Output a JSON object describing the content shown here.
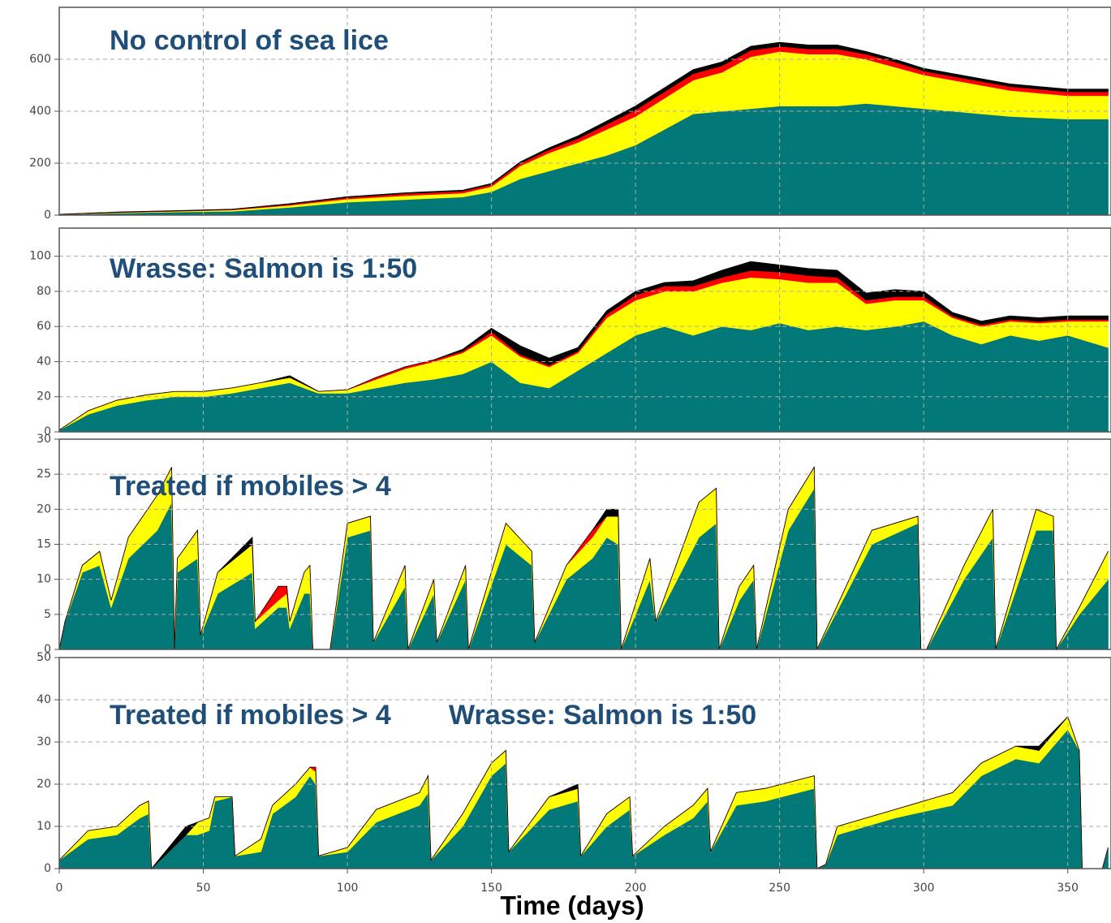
{
  "chart_data": [
    {
      "type": "area",
      "stacked": true,
      "annotations": [
        "No control of sea lice"
      ],
      "xlim": [
        0,
        365
      ],
      "ylim": [
        0,
        800
      ],
      "yticks": [
        0,
        200,
        400,
        600
      ],
      "grid": true,
      "x": [
        0,
        20,
        40,
        60,
        80,
        100,
        120,
        140,
        150,
        160,
        170,
        180,
        190,
        200,
        210,
        220,
        230,
        240,
        250,
        260,
        270,
        280,
        290,
        300,
        310,
        320,
        330,
        340,
        350,
        364
      ],
      "series": [
        {
          "color": "#037878",
          "values": [
            2,
            8,
            12,
            15,
            30,
            50,
            60,
            70,
            90,
            140,
            170,
            200,
            230,
            270,
            330,
            390,
            400,
            410,
            420,
            420,
            420,
            430,
            420,
            410,
            400,
            390,
            380,
            375,
            370,
            370
          ]
        },
        {
          "color": "#ffff00",
          "values": [
            1,
            2,
            3,
            5,
            8,
            12,
            15,
            15,
            20,
            50,
            70,
            80,
            100,
            110,
            120,
            130,
            150,
            200,
            210,
            200,
            200,
            170,
            150,
            130,
            120,
            110,
            100,
            95,
            90,
            90
          ]
        },
        {
          "color": "#ff0000",
          "values": [
            0,
            1,
            1,
            2,
            4,
            6,
            8,
            8,
            8,
            10,
            12,
            15,
            20,
            25,
            25,
            25,
            25,
            25,
            20,
            20,
            20,
            20,
            20,
            15,
            15,
            15,
            15,
            15,
            15,
            15
          ]
        },
        {
          "color": "#000000",
          "values": [
            0,
            1,
            1,
            1,
            2,
            3,
            3,
            3,
            4,
            5,
            7,
            10,
            12,
            15,
            15,
            15,
            15,
            15,
            15,
            15,
            15,
            10,
            10,
            10,
            10,
            10,
            10,
            10,
            10,
            10
          ]
        }
      ]
    },
    {
      "type": "area",
      "stacked": true,
      "annotations": [
        "Wrasse: Salmon is 1:50"
      ],
      "xlim": [
        0,
        365
      ],
      "ylim": [
        0,
        116
      ],
      "yticks": [
        0,
        20,
        40,
        60,
        80,
        100
      ],
      "grid": true,
      "x": [
        0,
        10,
        20,
        30,
        40,
        50,
        60,
        70,
        80,
        90,
        100,
        110,
        120,
        130,
        140,
        150,
        160,
        170,
        180,
        190,
        200,
        210,
        220,
        230,
        240,
        250,
        260,
        270,
        280,
        290,
        300,
        310,
        320,
        330,
        340,
        350,
        364
      ],
      "series": [
        {
          "color": "#037878",
          "values": [
            1,
            10,
            15,
            18,
            20,
            20,
            22,
            25,
            28,
            22,
            22,
            25,
            28,
            30,
            33,
            40,
            28,
            25,
            35,
            45,
            55,
            60,
            55,
            60,
            58,
            62,
            58,
            60,
            58,
            60,
            63,
            55,
            50,
            55,
            52,
            55,
            48
          ]
        },
        {
          "color": "#ffff00",
          "values": [
            0,
            2,
            3,
            3,
            3,
            3,
            3,
            3,
            3,
            1,
            2,
            5,
            8,
            10,
            12,
            15,
            15,
            12,
            10,
            20,
            20,
            20,
            25,
            25,
            30,
            25,
            27,
            25,
            15,
            15,
            12,
            10,
            10,
            8,
            10,
            8,
            15
          ]
        },
        {
          "color": "#ff0000",
          "values": [
            0,
            0,
            0,
            0,
            0,
            0,
            0,
            0,
            0,
            0,
            0,
            1,
            1,
            1,
            1,
            2,
            1,
            1,
            1,
            2,
            3,
            3,
            3,
            3,
            4,
            4,
            4,
            3,
            2,
            2,
            2,
            1,
            1,
            1,
            1,
            1,
            1
          ]
        },
        {
          "color": "#000000",
          "values": [
            0,
            0,
            0,
            0,
            0,
            0,
            0,
            0,
            1,
            0,
            0,
            0,
            0,
            0,
            1,
            2,
            5,
            4,
            2,
            2,
            2,
            2,
            3,
            4,
            5,
            4,
            4,
            4,
            4,
            4,
            3,
            2,
            2,
            2,
            2,
            2,
            2
          ]
        }
      ]
    },
    {
      "type": "area",
      "stacked": true,
      "annotations": [
        "Treated if mobiles > 4"
      ],
      "xlim": [
        0,
        365
      ],
      "ylim": [
        0,
        30
      ],
      "yticks": [
        0,
        5,
        10,
        15,
        20,
        25,
        30
      ],
      "grid": true,
      "x": [
        0,
        2,
        8,
        14,
        18,
        24,
        34,
        39,
        40,
        41,
        48,
        49,
        55,
        67,
        68,
        76,
        79,
        80,
        85,
        87,
        88,
        94,
        100,
        108,
        109,
        120,
        121,
        130,
        131,
        141,
        142,
        155,
        164,
        165,
        176,
        185,
        190,
        194,
        195,
        205,
        207,
        222,
        228,
        229,
        236,
        241,
        242,
        253,
        262,
        263,
        282,
        298,
        299,
        301,
        314,
        324,
        325,
        339,
        345,
        346,
        354,
        364
      ],
      "series": [
        {
          "color": "#037878",
          "values": [
            0,
            4,
            11,
            12,
            6,
            13,
            17,
            21,
            0,
            11,
            13,
            2,
            8,
            11,
            3,
            6,
            6,
            3,
            8,
            8,
            0,
            0,
            16,
            17,
            1,
            9,
            0,
            8,
            1,
            10,
            0,
            15,
            12,
            1,
            10,
            13,
            16,
            15,
            0,
            10,
            4,
            16,
            18,
            0,
            7,
            10,
            0,
            17,
            23,
            0,
            15,
            18,
            0,
            0,
            10,
            16,
            0,
            17,
            17,
            0,
            5,
            10
          ]
        },
        {
          "color": "#ffff00",
          "values": [
            0,
            0,
            1,
            2,
            1,
            3,
            5,
            5,
            0,
            2,
            4,
            0,
            3,
            4,
            1,
            1,
            2,
            1,
            3,
            4,
            0,
            0,
            2,
            2,
            0,
            3,
            0,
            2,
            0,
            2,
            0,
            3,
            2,
            0,
            2,
            3,
            3,
            4,
            0,
            3,
            0,
            5,
            5,
            0,
            2,
            2,
            0,
            3,
            3,
            0,
            2,
            1,
            0,
            0,
            2,
            4,
            0,
            3,
            2,
            0,
            1,
            4
          ]
        },
        {
          "color": "#ff0000",
          "values": [
            0,
            0,
            0,
            0,
            0,
            0,
            0,
            0,
            0,
            0,
            0,
            0,
            0,
            0,
            0,
            2,
            1,
            0,
            0,
            0,
            0,
            0,
            0,
            0,
            0,
            0,
            0,
            0,
            0,
            0,
            0,
            0,
            0,
            0,
            0,
            1,
            0,
            0,
            0,
            0,
            0,
            0,
            0,
            0,
            0,
            0,
            0,
            0,
            0,
            0,
            0,
            0,
            0,
            0,
            0,
            0,
            0,
            0,
            0,
            0,
            0,
            0
          ]
        },
        {
          "color": "#000000",
          "values": [
            0,
            0,
            0,
            0,
            0,
            0,
            0,
            0,
            0,
            0,
            0,
            0,
            0,
            1,
            0,
            0,
            0,
            0,
            0,
            0,
            0,
            0,
            0,
            0,
            0,
            0,
            0,
            0,
            0,
            0,
            0,
            0,
            0,
            0,
            0,
            0,
            1,
            1,
            0,
            0,
            0,
            0,
            0,
            0,
            0,
            0,
            0,
            0,
            0,
            0,
            0,
            0,
            0,
            0,
            0,
            0,
            0,
            0,
            0,
            0,
            0,
            0
          ]
        }
      ]
    },
    {
      "type": "area",
      "stacked": true,
      "annotations": [
        "Treated if mobiles > 4",
        "Wrasse: Salmon is 1:50"
      ],
      "xlabel": "Time (days)",
      "xlim": [
        0,
        365
      ],
      "ylim": [
        0,
        50
      ],
      "yticks": [
        0,
        10,
        20,
        30,
        40,
        50
      ],
      "xticks": [
        0,
        50,
        100,
        150,
        200,
        250,
        300,
        350
      ],
      "grid": true,
      "x": [
        0,
        10,
        20,
        28,
        31,
        32,
        38,
        44,
        48,
        52,
        54,
        60,
        61,
        70,
        74,
        82,
        87,
        89,
        90,
        100,
        110,
        125,
        128,
        129,
        140,
        150,
        155,
        156,
        170,
        180,
        181,
        190,
        198,
        199,
        210,
        220,
        225,
        226,
        235,
        245,
        262,
        263,
        266,
        270,
        290,
        310,
        320,
        332,
        340,
        350,
        354,
        355,
        362,
        364
      ],
      "series": [
        {
          "color": "#037878",
          "values": [
            2,
            7,
            8,
            12,
            13,
            0,
            4,
            8,
            8,
            9,
            16,
            17,
            3,
            4,
            13,
            17,
            22,
            20,
            3,
            4,
            11,
            15,
            18,
            2,
            10,
            22,
            25,
            4,
            14,
            16,
            3,
            10,
            14,
            3,
            8,
            12,
            16,
            4,
            15,
            16,
            19,
            0,
            1,
            8,
            12,
            15,
            22,
            26,
            25,
            33,
            28,
            0,
            0,
            5
          ]
        },
        {
          "color": "#ffff00",
          "values": [
            0,
            2,
            2,
            3,
            3,
            0,
            0,
            0,
            3,
            3,
            1,
            0,
            0,
            3,
            2,
            3,
            2,
            3,
            0,
            1,
            3,
            3,
            4,
            0,
            3,
            3,
            3,
            0,
            3,
            3,
            0,
            3,
            3,
            0,
            2,
            3,
            3,
            0,
            3,
            3,
            3,
            0,
            0,
            2,
            2,
            3,
            3,
            3,
            3,
            3,
            0,
            0,
            0,
            0
          ]
        },
        {
          "color": "#ff0000",
          "values": [
            0,
            0,
            0,
            0,
            0,
            0,
            0,
            0,
            0,
            0,
            0,
            0,
            0,
            0,
            0,
            0,
            0,
            1,
            0,
            0,
            0,
            0,
            0,
            0,
            0,
            0,
            0,
            0,
            0,
            0,
            0,
            0,
            0,
            0,
            0,
            0,
            0,
            0,
            0,
            0,
            0,
            0,
            0,
            0,
            0,
            0,
            0,
            0,
            0,
            0,
            0,
            0,
            0,
            0
          ]
        },
        {
          "color": "#000000",
          "values": [
            0,
            0,
            0,
            0,
            0,
            0,
            1,
            2,
            0,
            0,
            0,
            0,
            0,
            0,
            0,
            0,
            0,
            0,
            0,
            0,
            0,
            0,
            0,
            0,
            0,
            0,
            0,
            0,
            0,
            1,
            0,
            0,
            0,
            0,
            0,
            0,
            0,
            0,
            0,
            0,
            0,
            0,
            0,
            0,
            0,
            0,
            0,
            0,
            1,
            0,
            0,
            0,
            0,
            0
          ]
        }
      ]
    }
  ]
}
